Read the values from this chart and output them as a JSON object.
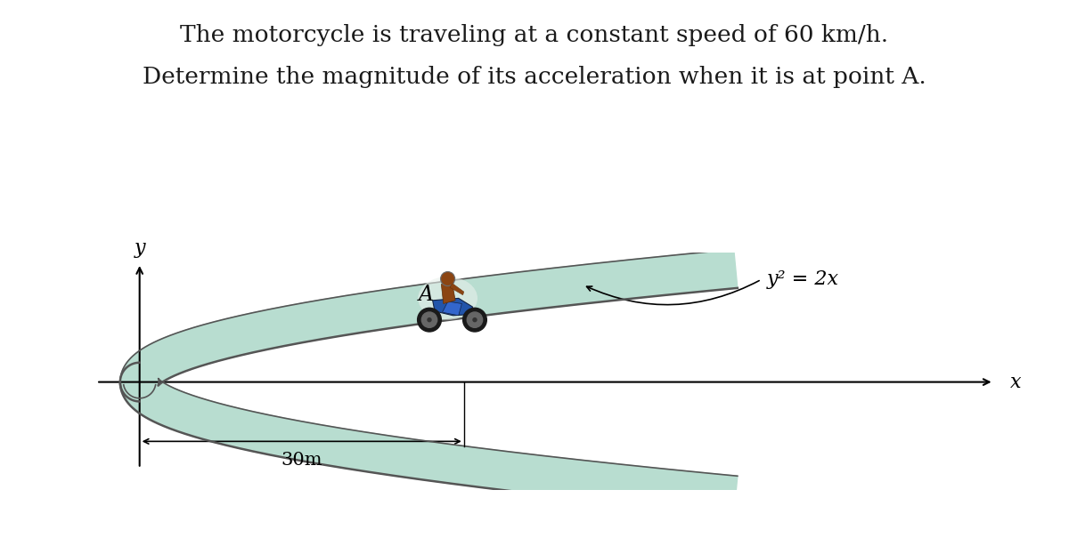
{
  "title_line1": "The motorcycle is traveling at a constant speed of 60 km/h.",
  "title_line2": "Determine the magnitude of its acceleration when it is at point A.",
  "equation_label": "y² = 2x",
  "point_label": "A",
  "distance_label": "30m",
  "x_axis_label": "x",
  "y_axis_label": "y",
  "bg_color": "#ffffff",
  "road_edge_color": "#aaaaaa",
  "road_fill_color": "#b8ddd0",
  "road_outline_color": "#555555",
  "curve_color": "#444444",
  "title_fontsize": 19,
  "eq_fontsize": 16,
  "label_fontsize": 16,
  "dim_fontsize": 15,
  "fig_width": 12.0,
  "fig_height": 6.05,
  "road_thickness": 0.018
}
